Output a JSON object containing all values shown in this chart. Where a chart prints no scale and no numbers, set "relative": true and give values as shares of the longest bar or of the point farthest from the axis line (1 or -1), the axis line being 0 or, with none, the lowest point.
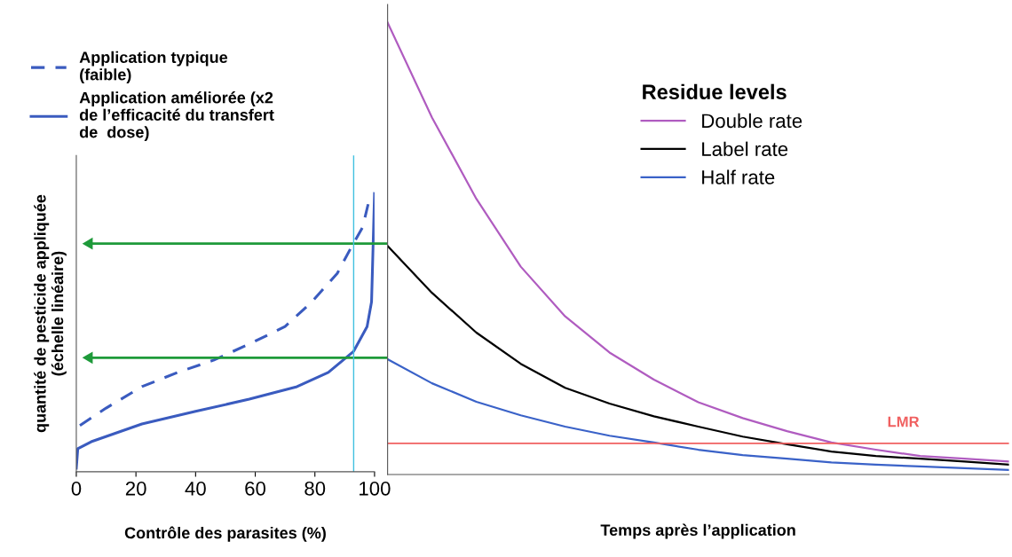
{
  "chart_data": [
    {
      "type": "line",
      "relative": true,
      "xlim": [
        0,
        100
      ],
      "xticks": [
        0,
        20,
        40,
        60,
        80,
        100
      ],
      "tick_labels": "x",
      "xlabel": "Contrôle des parasites (%)",
      "ylabel": "quantité de pesticide appliquée\n(échelle linéaire)",
      "legend": "top left",
      "series": [
        {
          "name": "Application typique\n(faible)",
          "color": "#3a5bbf",
          "line_style": "dashed",
          "x": [
            1.2,
            10,
            22,
            34,
            46,
            58,
            70,
            79,
            87.5,
            92,
            96,
            98,
            99
          ],
          "values": [
            0.166,
            0.229,
            0.306,
            0.357,
            0.401,
            0.459,
            0.522,
            0.611,
            0.713,
            0.803,
            0.879,
            0.968,
            0.994
          ]
        },
        {
          "name": "Application améliorée (x2\nde l’efficacité du transfert\nde  dose)",
          "color": "#3a5bbf",
          "line_style": "solid",
          "x": [
            0,
            0.5,
            5,
            22,
            40,
            58,
            74,
            84.5,
            93,
            97.5,
            99,
            99.5,
            100
          ],
          "values": [
            0.013,
            0.083,
            0.108,
            0.172,
            0.217,
            0.261,
            0.306,
            0.357,
            0.433,
            0.522,
            0.611,
            0.803,
            1
          ]
        }
      ],
      "ref_lines": [
        {
          "axis": "y",
          "value": 0.82,
          "color": "#1e9a3a"
        },
        {
          "axis": "y",
          "value": 0.41,
          "color": "#1e9a3a"
        },
        {
          "axis": "x",
          "value": 93,
          "color": "#40c0e0"
        }
      ]
    },
    {
      "type": "line",
      "relative": true,
      "tick_labels": false,
      "categories": [
        null,
        null,
        null,
        null,
        null,
        null,
        null,
        null,
        null,
        null,
        null,
        null,
        null,
        null,
        null
      ],
      "xlabel": "Temps après l’application",
      "legend": "right",
      "legend_title": "Residue levels",
      "series": [
        {
          "name": "Double rate",
          "color": "#b05cc0",
          "values": [
            1,
            0.79,
            0.61,
            0.46,
            0.35,
            0.27,
            0.21,
            0.16,
            0.125,
            0.096,
            0.071,
            0.055,
            0.041,
            0.035,
            0.029
          ]
        },
        {
          "name": "Label rate",
          "color": "#000000",
          "values": [
            0.506,
            0.402,
            0.314,
            0.245,
            0.192,
            0.157,
            0.129,
            0.106,
            0.084,
            0.067,
            0.051,
            0.041,
            0.035,
            0.029,
            0.022
          ]
        },
        {
          "name": "Half rate",
          "color": "#3a62c8",
          "values": [
            0.255,
            0.202,
            0.161,
            0.131,
            0.106,
            0.086,
            0.071,
            0.055,
            0.043,
            0.035,
            0.027,
            0.022,
            0.018,
            0.014,
            0.01
          ]
        }
      ],
      "ref_lines": [
        {
          "axis": "y",
          "value": 0.069,
          "label": "LMR",
          "color": "#f06060"
        }
      ]
    }
  ]
}
